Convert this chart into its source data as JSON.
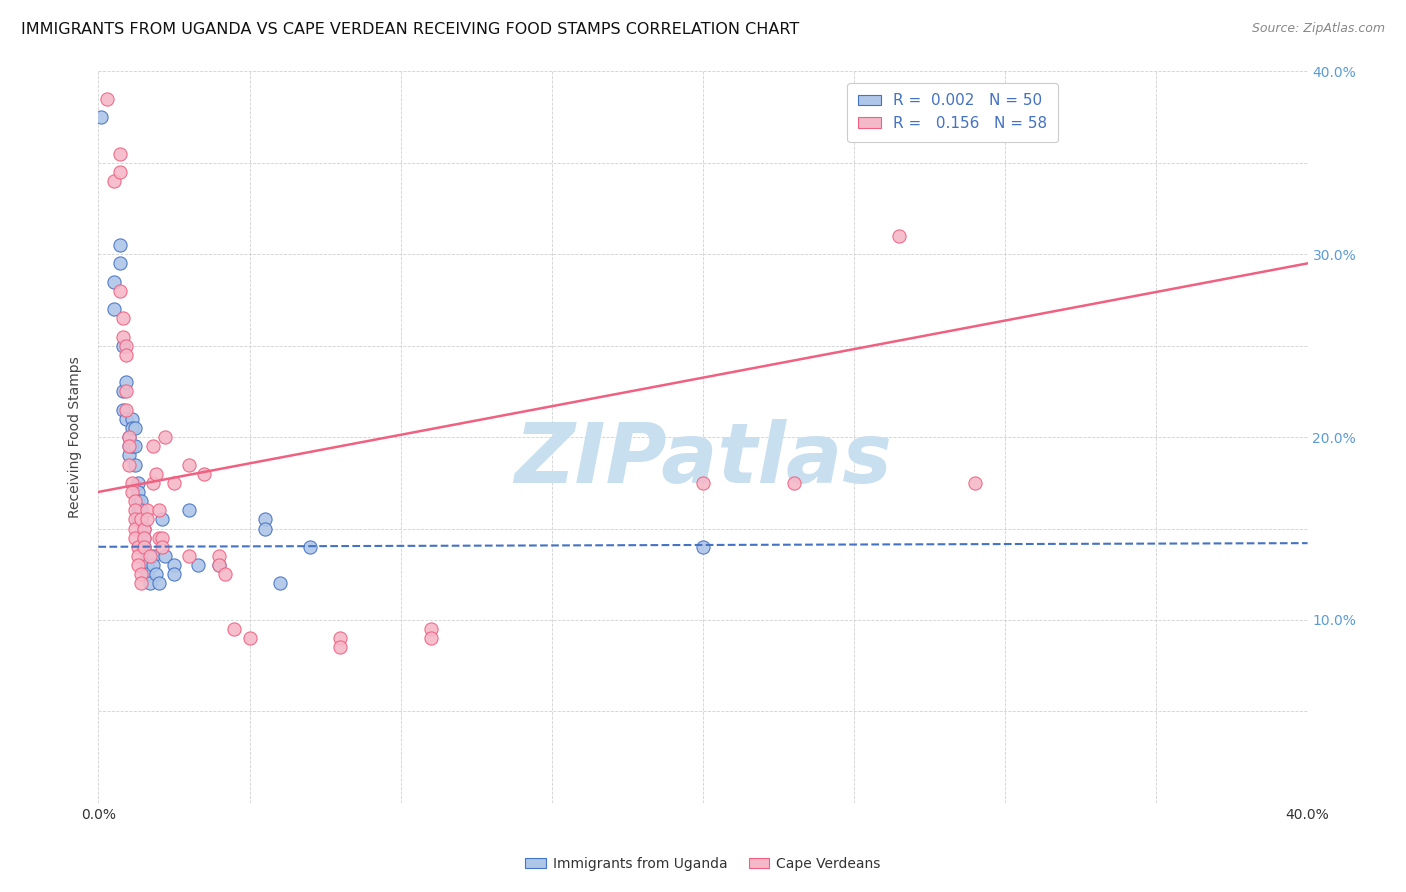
{
  "title": "IMMIGRANTS FROM UGANDA VS CAPE VERDEAN RECEIVING FOOD STAMPS CORRELATION CHART",
  "source": "Source: ZipAtlas.com",
  "ylabel": "Receiving Food Stamps",
  "xlim": [
    0.0,
    0.4
  ],
  "ylim": [
    0.0,
    0.4
  ],
  "color_uganda": "#aec6e8",
  "color_cape_verde": "#f5b8c8",
  "color_uganda_line": "#4472c4",
  "color_cape_verde_line": "#f06080",
  "trendline_uganda_color": "#4472c4",
  "trendline_cape_color": "#f06080",
  "watermark_color": "#c8dff0",
  "legend_label_uganda": "Immigrants from Uganda",
  "legend_label_cape": "Cape Verdeans",
  "uganda_points": [
    [
      0.001,
      0.375
    ],
    [
      0.005,
      0.285
    ],
    [
      0.005,
      0.27
    ],
    [
      0.007,
      0.305
    ],
    [
      0.007,
      0.295
    ],
    [
      0.008,
      0.25
    ],
    [
      0.008,
      0.225
    ],
    [
      0.008,
      0.215
    ],
    [
      0.009,
      0.23
    ],
    [
      0.009,
      0.21
    ],
    [
      0.01,
      0.2
    ],
    [
      0.01,
      0.195
    ],
    [
      0.01,
      0.19
    ],
    [
      0.011,
      0.21
    ],
    [
      0.011,
      0.205
    ],
    [
      0.011,
      0.195
    ],
    [
      0.012,
      0.205
    ],
    [
      0.012,
      0.195
    ],
    [
      0.012,
      0.185
    ],
    [
      0.013,
      0.175
    ],
    [
      0.013,
      0.17
    ],
    [
      0.013,
      0.165
    ],
    [
      0.013,
      0.16
    ],
    [
      0.013,
      0.155
    ],
    [
      0.014,
      0.165
    ],
    [
      0.014,
      0.16
    ],
    [
      0.014,
      0.155
    ],
    [
      0.015,
      0.15
    ],
    [
      0.015,
      0.145
    ],
    [
      0.015,
      0.14
    ],
    [
      0.016,
      0.135
    ],
    [
      0.016,
      0.13
    ],
    [
      0.016,
      0.125
    ],
    [
      0.017,
      0.12
    ],
    [
      0.018,
      0.135
    ],
    [
      0.018,
      0.13
    ],
    [
      0.019,
      0.125
    ],
    [
      0.02,
      0.12
    ],
    [
      0.021,
      0.155
    ],
    [
      0.022,
      0.135
    ],
    [
      0.025,
      0.13
    ],
    [
      0.025,
      0.125
    ],
    [
      0.03,
      0.16
    ],
    [
      0.033,
      0.13
    ],
    [
      0.04,
      0.13
    ],
    [
      0.055,
      0.155
    ],
    [
      0.055,
      0.15
    ],
    [
      0.06,
      0.12
    ],
    [
      0.07,
      0.14
    ],
    [
      0.2,
      0.14
    ]
  ],
  "cape_verde_points": [
    [
      0.003,
      0.385
    ],
    [
      0.005,
      0.34
    ],
    [
      0.007,
      0.355
    ],
    [
      0.007,
      0.345
    ],
    [
      0.007,
      0.28
    ],
    [
      0.008,
      0.265
    ],
    [
      0.008,
      0.255
    ],
    [
      0.009,
      0.25
    ],
    [
      0.009,
      0.245
    ],
    [
      0.009,
      0.225
    ],
    [
      0.009,
      0.215
    ],
    [
      0.01,
      0.2
    ],
    [
      0.01,
      0.195
    ],
    [
      0.01,
      0.185
    ],
    [
      0.011,
      0.175
    ],
    [
      0.011,
      0.17
    ],
    [
      0.012,
      0.165
    ],
    [
      0.012,
      0.16
    ],
    [
      0.012,
      0.155
    ],
    [
      0.012,
      0.15
    ],
    [
      0.012,
      0.145
    ],
    [
      0.013,
      0.14
    ],
    [
      0.013,
      0.135
    ],
    [
      0.013,
      0.13
    ],
    [
      0.014,
      0.125
    ],
    [
      0.014,
      0.12
    ],
    [
      0.014,
      0.155
    ],
    [
      0.015,
      0.15
    ],
    [
      0.015,
      0.145
    ],
    [
      0.015,
      0.14
    ],
    [
      0.016,
      0.16
    ],
    [
      0.016,
      0.155
    ],
    [
      0.017,
      0.135
    ],
    [
      0.018,
      0.175
    ],
    [
      0.018,
      0.195
    ],
    [
      0.019,
      0.18
    ],
    [
      0.02,
      0.16
    ],
    [
      0.02,
      0.145
    ],
    [
      0.021,
      0.145
    ],
    [
      0.021,
      0.14
    ],
    [
      0.022,
      0.2
    ],
    [
      0.025,
      0.175
    ],
    [
      0.03,
      0.185
    ],
    [
      0.03,
      0.135
    ],
    [
      0.035,
      0.18
    ],
    [
      0.04,
      0.135
    ],
    [
      0.04,
      0.13
    ],
    [
      0.042,
      0.125
    ],
    [
      0.045,
      0.095
    ],
    [
      0.05,
      0.09
    ],
    [
      0.08,
      0.09
    ],
    [
      0.08,
      0.085
    ],
    [
      0.11,
      0.095
    ],
    [
      0.11,
      0.09
    ],
    [
      0.2,
      0.175
    ],
    [
      0.23,
      0.175
    ],
    [
      0.265,
      0.31
    ],
    [
      0.29,
      0.175
    ]
  ],
  "trendline_uganda": {
    "x": [
      0.0,
      0.4
    ],
    "y": [
      0.14,
      0.142
    ]
  },
  "trendline_cape": {
    "x": [
      0.0,
      0.4
    ],
    "y": [
      0.17,
      0.295
    ]
  },
  "background_color": "#ffffff",
  "grid_color": "#cccccc",
  "title_fontsize": 11.5,
  "axis_fontsize": 10,
  "marker_size": 90
}
